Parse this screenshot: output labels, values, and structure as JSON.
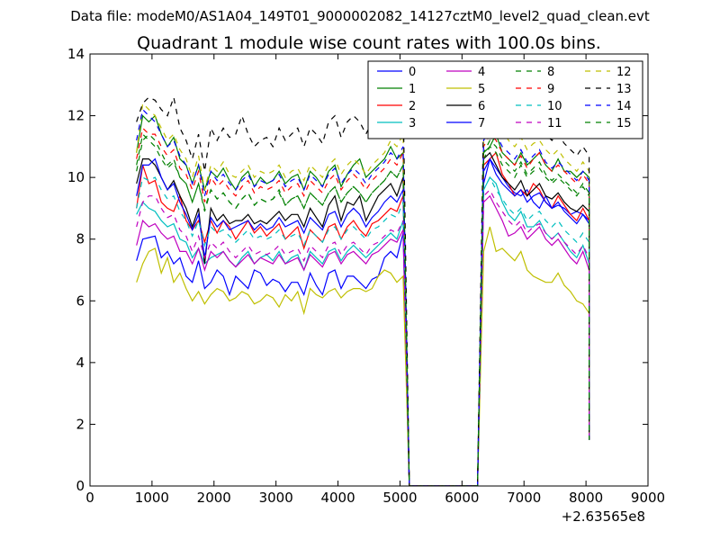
{
  "header": {
    "file_label": "Data file: modeM0/AS1A04_149T01_9000002082_14127cztM0_level2_quad_clean.evt"
  },
  "chart_data": {
    "type": "line",
    "title": "Quadrant 1 module wise count rates with 100.0s bins.",
    "xlabel": "",
    "ylabel": "",
    "x_offset_label": "+2.63565e8",
    "xlim": [
      0,
      9000
    ],
    "ylim": [
      0,
      14
    ],
    "x_ticks": [
      0,
      1000,
      2000,
      3000,
      4000,
      5000,
      6000,
      7000,
      8000,
      9000
    ],
    "y_ticks": [
      0,
      2,
      4,
      6,
      8,
      10,
      12,
      14
    ],
    "grid": false,
    "legend": {
      "position": "top-right",
      "columns": 4
    },
    "x_first": 750,
    "x_step": 100,
    "x_gap": [
      5150,
      6250
    ],
    "x_after_gap_start": 6350,
    "x_last": 8050,
    "end_value": 1.5,
    "series": [
      {
        "name": "0",
        "color": "#0000ff",
        "dashed": false,
        "segment1": [
          7.3,
          8.0,
          8.05,
          8.1,
          7.4,
          7.6,
          7.2,
          7.4,
          6.8,
          6.6,
          7.3,
          6.4,
          6.6,
          7.0,
          6.8,
          6.2,
          6.8,
          6.6,
          6.4,
          7.0,
          6.9,
          6.5,
          6.7,
          6.6,
          6.3,
          6.6,
          6.6,
          6.2,
          6.9,
          6.5,
          6.2,
          6.9,
          7.0,
          6.4,
          6.8,
          6.8,
          6.6,
          6.4,
          6.7,
          6.8,
          7.4,
          7.6,
          7.4,
          8.2
        ],
        "segment2": [
          9.8,
          10.6,
          10.3,
          10.0,
          9.7,
          9.5,
          9.4,
          9.6,
          9.2,
          9.0,
          9.4,
          9.0,
          9.1,
          9.0,
          8.8,
          8.9,
          8.8,
          8.6
        ]
      },
      {
        "name": "1",
        "color": "#008000",
        "dashed": false,
        "segment1": [
          10.8,
          12.0,
          11.8,
          12.0,
          11.4,
          11.0,
          11.3,
          10.6,
          10.4,
          9.8,
          10.4,
          9.6,
          10.2,
          10.0,
          10.3,
          9.9,
          9.6,
          10.0,
          10.2,
          9.7,
          10.0,
          9.8,
          9.9,
          10.2,
          9.8,
          10.0,
          10.1,
          9.6,
          10.2,
          10.0,
          9.7,
          10.2,
          10.4,
          9.7,
          10.1,
          10.4,
          10.6,
          10.0,
          10.2,
          10.4,
          10.6,
          11.0,
          10.6,
          10.8
        ],
        "segment2": [
          10.8,
          11.0,
          11.4,
          10.8,
          10.6,
          10.4,
          10.8,
          10.4,
          10.6,
          10.8,
          10.4,
          10.2,
          10.6,
          10.2,
          10.2,
          10.0,
          10.2,
          10.0
        ]
      },
      {
        "name": "2",
        "color": "#ff0000",
        "dashed": false,
        "segment1": [
          9.0,
          10.4,
          9.8,
          9.9,
          9.2,
          9.0,
          8.9,
          9.4,
          8.6,
          8.3,
          8.6,
          7.9,
          8.6,
          8.2,
          8.6,
          8.4,
          8.0,
          8.3,
          8.6,
          8.2,
          8.4,
          8.1,
          8.3,
          8.5,
          8.0,
          8.2,
          8.4,
          7.7,
          8.3,
          8.1,
          7.9,
          8.4,
          8.5,
          8.0,
          8.4,
          8.6,
          8.3,
          8.1,
          8.5,
          8.6,
          8.8,
          9.0,
          8.9,
          9.4
        ],
        "segment2": [
          10.4,
          10.6,
          10.8,
          10.1,
          9.8,
          9.4,
          9.6,
          9.4,
          9.8,
          9.6,
          9.2,
          9.0,
          9.4,
          9.1,
          8.8,
          8.6,
          9.0,
          8.6
        ]
      },
      {
        "name": "3",
        "color": "#00bfbf",
        "dashed": false,
        "segment1": [
          8.8,
          9.2,
          9.0,
          8.9,
          8.6,
          8.4,
          8.5,
          8.0,
          7.9,
          7.4,
          7.7,
          7.2,
          7.4,
          7.5,
          7.6,
          7.3,
          7.1,
          7.4,
          7.6,
          7.2,
          7.4,
          7.5,
          7.3,
          7.6,
          7.2,
          7.4,
          7.5,
          7.0,
          7.6,
          7.4,
          7.2,
          7.6,
          7.7,
          7.3,
          7.6,
          7.8,
          7.6,
          7.4,
          7.6,
          7.8,
          8.0,
          8.2,
          8.0,
          8.6
        ],
        "segment2": [
          9.6,
          10.0,
          9.8,
          9.2,
          8.8,
          8.6,
          8.9,
          8.4,
          8.4,
          8.6,
          8.2,
          8.0,
          8.2,
          7.9,
          7.6,
          7.4,
          7.8,
          7.2
        ]
      },
      {
        "name": "4",
        "color": "#bf00bf",
        "dashed": false,
        "segment1": [
          7.8,
          8.6,
          8.4,
          8.5,
          8.2,
          8.0,
          8.1,
          7.6,
          7.6,
          7.2,
          7.7,
          7.0,
          7.6,
          7.4,
          7.6,
          7.3,
          7.1,
          7.3,
          7.5,
          7.2,
          7.4,
          7.3,
          7.2,
          7.5,
          7.2,
          7.3,
          7.4,
          7.0,
          7.5,
          7.3,
          7.1,
          7.5,
          7.6,
          7.2,
          7.5,
          7.6,
          7.4,
          7.2,
          7.5,
          7.6,
          7.8,
          8.0,
          7.9,
          8.3
        ],
        "segment2": [
          9.2,
          9.4,
          9.0,
          8.6,
          8.1,
          8.2,
          8.4,
          8.0,
          8.2,
          8.4,
          8.0,
          7.8,
          8.0,
          7.7,
          7.4,
          7.2,
          7.6,
          7.0
        ]
      },
      {
        "name": "5",
        "color": "#bfbf00",
        "dashed": false,
        "segment1": [
          6.6,
          7.2,
          7.6,
          7.7,
          6.9,
          7.4,
          6.6,
          6.9,
          6.4,
          6.0,
          6.3,
          5.9,
          6.2,
          6.4,
          6.3,
          6.0,
          6.1,
          6.3,
          6.2,
          5.9,
          6.0,
          6.2,
          6.1,
          5.8,
          6.2,
          6.0,
          6.3,
          5.6,
          6.4,
          6.2,
          6.1,
          6.3,
          6.4,
          6.1,
          6.3,
          6.4,
          6.4,
          6.3,
          6.4,
          6.8,
          7.0,
          6.9,
          6.6,
          6.8
        ],
        "segment2": [
          7.6,
          8.4,
          7.6,
          7.7,
          7.5,
          7.3,
          7.6,
          7.0,
          6.8,
          6.7,
          6.6,
          6.6,
          6.9,
          6.5,
          6.3,
          6.0,
          5.9,
          5.6
        ]
      },
      {
        "name": "6",
        "color": "#000000",
        "dashed": false,
        "segment1": [
          9.8,
          10.6,
          10.6,
          10.4,
          10.0,
          9.6,
          9.9,
          9.4,
          9.0,
          8.4,
          9.0,
          7.2,
          9.0,
          8.6,
          8.8,
          8.5,
          8.6,
          8.6,
          8.8,
          8.5,
          8.6,
          8.5,
          8.7,
          8.9,
          8.6,
          8.8,
          8.8,
          8.4,
          9.0,
          8.7,
          8.4,
          9.1,
          9.4,
          8.6,
          9.2,
          9.1,
          9.4,
          8.6,
          9.0,
          9.4,
          9.6,
          9.8,
          9.4,
          10.0
        ],
        "segment2": [
          10.6,
          10.8,
          10.4,
          10.0,
          9.8,
          9.6,
          9.9,
          9.4,
          9.6,
          9.8,
          9.4,
          9.3,
          9.5,
          9.2,
          9.0,
          8.9,
          9.1,
          8.9
        ]
      },
      {
        "name": "7",
        "color": "#0000ff",
        "dashed": false,
        "segment1": [
          9.4,
          10.4,
          10.4,
          10.6,
          10.0,
          9.6,
          9.8,
          9.2,
          8.8,
          8.3,
          8.8,
          7.4,
          8.7,
          8.4,
          8.6,
          8.3,
          8.4,
          8.5,
          8.6,
          8.3,
          8.5,
          8.3,
          8.4,
          8.7,
          8.4,
          8.5,
          8.6,
          8.2,
          8.7,
          8.5,
          8.3,
          8.8,
          8.9,
          8.4,
          8.8,
          9.0,
          8.8,
          8.4,
          8.7,
          8.9,
          9.2,
          9.4,
          9.2,
          9.6
        ],
        "segment2": [
          10.2,
          10.6,
          10.1,
          9.8,
          9.6,
          9.4,
          9.6,
          9.2,
          9.4,
          9.5,
          9.2,
          9.0,
          9.2,
          8.9,
          8.7,
          8.5,
          8.8,
          8.5
        ]
      },
      {
        "name": "8",
        "color": "#008000",
        "dashed": true,
        "segment1": [
          10.2,
          11.2,
          11.4,
          11.2,
          10.8,
          10.4,
          10.6,
          10.0,
          9.8,
          9.2,
          9.8,
          9.0,
          9.6,
          9.3,
          9.5,
          9.2,
          9.0,
          9.3,
          9.5,
          9.1,
          9.3,
          9.2,
          9.3,
          9.6,
          9.1,
          9.3,
          9.4,
          9.0,
          9.5,
          9.3,
          9.1,
          9.5,
          9.7,
          9.2,
          9.5,
          9.7,
          9.5,
          9.2,
          9.5,
          9.7,
          9.9,
          10.2,
          10.0,
          10.4
        ],
        "segment2": [
          10.6,
          11.0,
          10.8,
          10.4,
          10.2,
          10.0,
          10.4,
          10.0,
          10.2,
          10.3,
          10.0,
          9.8,
          10.0,
          9.8,
          9.6,
          9.4,
          9.7,
          9.4
        ]
      },
      {
        "name": "9",
        "color": "#ff0000",
        "dashed": true,
        "segment1": [
          10.6,
          11.6,
          11.4,
          11.4,
          11.0,
          10.7,
          10.9,
          10.3,
          10.1,
          9.6,
          10.2,
          9.2,
          10.0,
          9.7,
          9.9,
          9.6,
          9.4,
          9.7,
          9.9,
          9.5,
          9.7,
          9.6,
          9.7,
          9.9,
          9.5,
          9.7,
          9.8,
          9.4,
          9.9,
          9.7,
          9.5,
          9.9,
          10.1,
          9.6,
          9.9,
          10.1,
          9.9,
          9.6,
          9.9,
          10.1,
          10.3,
          10.6,
          10.4,
          10.8
        ],
        "segment2": [
          11.0,
          11.4,
          11.2,
          10.8,
          10.6,
          10.4,
          10.7,
          10.3,
          10.6,
          10.8,
          10.4,
          10.2,
          10.4,
          10.2,
          10.0,
          9.8,
          10.1,
          9.8
        ]
      },
      {
        "name": "10",
        "color": "#00bfbf",
        "dashed": true,
        "segment1": [
          9.0,
          10.0,
          9.9,
          10.0,
          9.6,
          9.3,
          9.4,
          8.9,
          8.6,
          8.1,
          8.6,
          7.8,
          8.4,
          8.2,
          8.3,
          8.1,
          7.9,
          8.1,
          8.3,
          8.0,
          8.1,
          8.0,
          8.1,
          8.3,
          8.0,
          8.1,
          8.2,
          7.8,
          8.3,
          8.1,
          7.9,
          8.3,
          8.4,
          8.0,
          8.3,
          8.4,
          8.2,
          8.0,
          8.3,
          8.4,
          8.6,
          8.8,
          8.7,
          9.2
        ],
        "segment2": [
          9.6,
          10.0,
          9.6,
          9.3,
          9.0,
          8.8,
          9.0,
          8.6,
          8.8,
          8.9,
          8.6,
          8.4,
          8.6,
          8.3,
          8.1,
          7.9,
          8.2,
          7.9
        ]
      },
      {
        "name": "11",
        "color": "#bf00bf",
        "dashed": true,
        "segment1": [
          8.4,
          9.2,
          9.4,
          9.4,
          9.0,
          8.7,
          8.8,
          8.3,
          8.1,
          7.6,
          8.1,
          7.4,
          7.9,
          7.7,
          7.9,
          7.6,
          7.4,
          7.6,
          7.8,
          7.5,
          7.6,
          7.5,
          7.6,
          7.8,
          7.5,
          7.6,
          7.7,
          7.3,
          7.8,
          7.6,
          7.4,
          7.8,
          7.9,
          7.5,
          7.8,
          7.9,
          7.7,
          7.5,
          7.8,
          7.9,
          8.1,
          8.3,
          8.2,
          8.6
        ],
        "segment2": [
          9.4,
          9.6,
          9.2,
          8.9,
          8.6,
          8.4,
          8.6,
          8.2,
          8.4,
          8.5,
          8.2,
          8.0,
          8.2,
          7.9,
          7.7,
          7.5,
          7.8,
          7.4
        ]
      },
      {
        "name": "12",
        "color": "#bfbf00",
        "dashed": true,
        "segment1": [
          10.8,
          12.4,
          12.2,
          12.0,
          11.6,
          11.2,
          11.4,
          10.9,
          10.6,
          10.0,
          10.7,
          9.6,
          10.4,
          10.2,
          10.5,
          10.1,
          10.0,
          10.2,
          10.4,
          10.0,
          10.2,
          10.1,
          10.2,
          10.4,
          10.0,
          10.2,
          10.3,
          9.9,
          10.4,
          10.2,
          10.0,
          10.4,
          10.6,
          10.1,
          10.4,
          10.6,
          10.4,
          10.1,
          10.4,
          10.6,
          10.8,
          11.2,
          11.0,
          11.4
        ],
        "segment2": [
          11.6,
          13.2,
          12.0,
          11.6,
          11.2,
          11.0,
          11.3,
          10.9,
          11.1,
          11.2,
          10.9,
          10.7,
          10.9,
          10.6,
          10.4,
          10.2,
          10.5,
          10.2
        ]
      },
      {
        "name": "13",
        "color": "#000000",
        "dashed": true,
        "segment1": [
          11.8,
          12.4,
          12.6,
          12.5,
          12.2,
          12.0,
          12.6,
          11.6,
          11.2,
          10.6,
          11.4,
          10.2,
          11.6,
          11.2,
          11.6,
          11.3,
          11.4,
          12.0,
          11.4,
          11.0,
          11.2,
          11.3,
          11.0,
          11.6,
          11.2,
          11.4,
          11.6,
          11.0,
          11.6,
          11.4,
          11.1,
          11.8,
          12.0,
          11.3,
          11.8,
          12.0,
          11.8,
          11.4,
          11.8,
          12.0,
          12.2,
          12.4,
          12.3,
          12.6
        ],
        "segment2": [
          12.2,
          12.6,
          12.4,
          12.0,
          11.9,
          11.6,
          11.8,
          11.4,
          11.6,
          11.8,
          11.4,
          11.2,
          11.4,
          11.1,
          10.9,
          10.7,
          11.0,
          10.7
        ]
      },
      {
        "name": "14",
        "color": "#0000ff",
        "dashed": true,
        "segment1": [
          11.2,
          12.2,
          12.0,
          11.8,
          11.4,
          11.0,
          11.2,
          10.7,
          10.4,
          9.8,
          10.4,
          9.4,
          10.2,
          9.9,
          10.1,
          9.8,
          9.6,
          9.9,
          10.1,
          9.7,
          9.9,
          9.8,
          9.9,
          10.1,
          9.7,
          9.9,
          10.0,
          9.6,
          10.1,
          9.9,
          9.7,
          10.1,
          10.3,
          9.8,
          10.1,
          10.3,
          10.1,
          9.8,
          10.1,
          10.3,
          10.5,
          10.8,
          10.6,
          11.0
        ],
        "segment2": [
          11.2,
          11.6,
          11.4,
          11.0,
          10.8,
          10.6,
          10.9,
          10.5,
          10.7,
          10.9,
          10.5,
          10.3,
          10.5,
          10.3,
          10.1,
          9.9,
          10.2,
          9.9
        ]
      },
      {
        "name": "15",
        "color": "#008000",
        "dashed": true,
        "segment1": [
          10.4,
          11.4,
          11.2,
          11.0,
          10.6,
          10.3,
          10.5,
          10.0,
          9.8,
          9.2,
          9.8,
          8.9,
          9.6,
          9.3,
          9.5,
          9.2,
          9.0,
          9.3,
          9.5,
          9.1,
          9.3,
          9.2,
          9.3,
          9.5,
          9.1,
          9.3,
          9.4,
          9.0,
          9.5,
          9.3,
          9.1,
          9.5,
          9.7,
          9.2,
          9.5,
          9.7,
          9.5,
          9.2,
          9.5,
          9.7,
          9.9,
          10.2,
          10.0,
          10.4
        ],
        "segment2": [
          10.8,
          11.2,
          11.0,
          10.6,
          10.4,
          10.2,
          10.5,
          10.1,
          10.3,
          10.5,
          10.1,
          9.9,
          10.1,
          9.9,
          9.7,
          9.5,
          9.8,
          9.5
        ]
      }
    ]
  }
}
